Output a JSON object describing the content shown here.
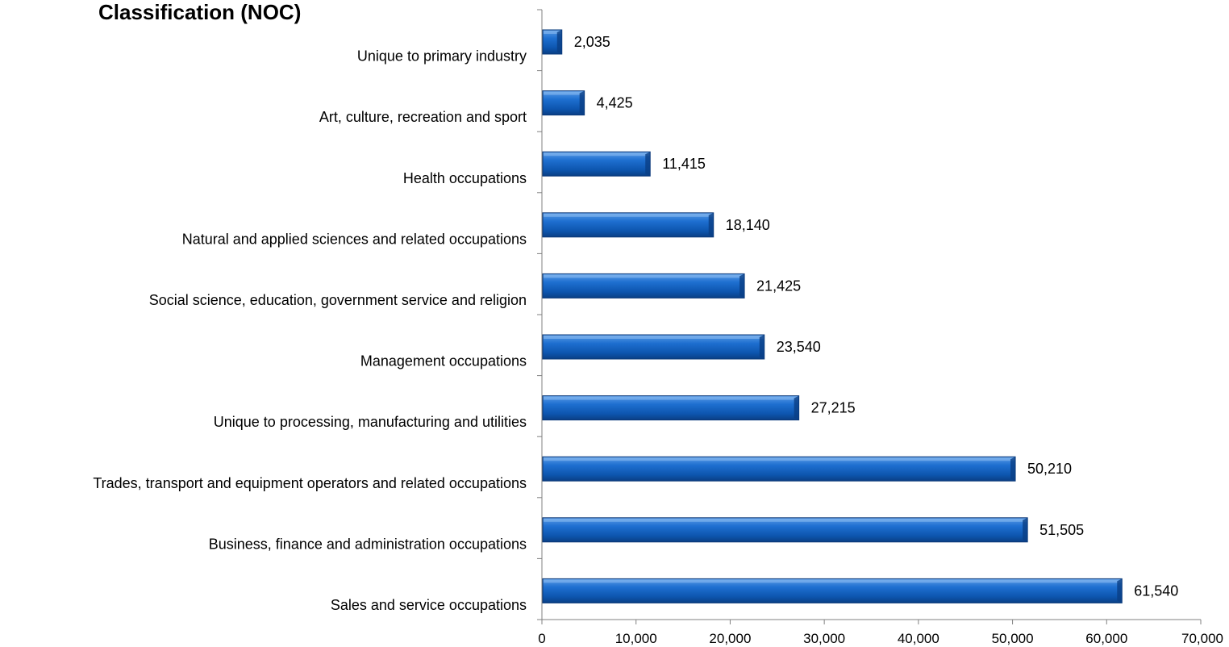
{
  "chart_data": {
    "type": "bar",
    "orientation": "horizontal",
    "title": "Classification (NOC)",
    "categories": [
      "Unique to primary industry",
      "Art, culture, recreation and sport",
      "Health occupations",
      "Natural and applied sciences and related occupations",
      "Social science, education, government service and religion",
      "Management occupations",
      "Unique to processing, manufacturing and utilities",
      "Trades, transport and equipment operators and related occupations",
      "Business, finance and administration occupations",
      "Sales and service occupations"
    ],
    "values": [
      2035,
      4425,
      11415,
      18140,
      21425,
      23540,
      27215,
      50210,
      51505,
      61540
    ],
    "data_labels": [
      "2,035",
      "4,425",
      "11,415",
      "18,140",
      "21,425",
      "23,540",
      "27,215",
      "50,210",
      "51,505",
      "61,540"
    ],
    "xlim": [
      0,
      70000
    ],
    "xticks": [
      0,
      10000,
      20000,
      30000,
      40000,
      50000,
      60000,
      70000
    ],
    "xtick_labels": [
      "0",
      "10,000",
      "20,000",
      "30,000",
      "40,000",
      "50,000",
      "60,000",
      "70,000"
    ],
    "xlabel": "",
    "ylabel": "",
    "grid": false,
    "legend": "none",
    "bar_color": "#1565C0"
  }
}
